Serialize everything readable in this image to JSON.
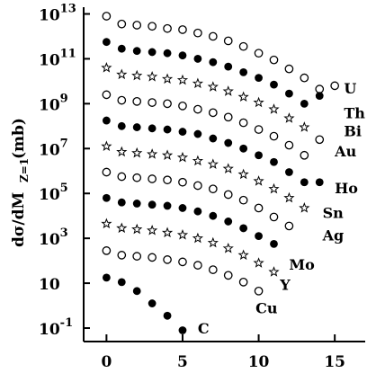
{
  "chart_data": {
    "type": "scatter",
    "title": "",
    "xlabel": "",
    "ylabel": "dσ/dM",
    "ylabel_sub": "Z=1",
    "ylabel_unit": "(mb)",
    "y_scale": "log",
    "xlim": [
      -1.5,
      17
    ],
    "ylim_exponent": [
      -1.6,
      13.3
    ],
    "x_ticks": [
      {
        "value": 0,
        "label": "0"
      },
      {
        "value": 5,
        "label": "5"
      },
      {
        "value": 10,
        "label": "10"
      },
      {
        "value": 15,
        "label": "15"
      }
    ],
    "y_ticks": [
      {
        "exp": 13,
        "base": "10",
        "sup": "13"
      },
      {
        "exp": 11,
        "base": "10",
        "sup": "11"
      },
      {
        "exp": 9,
        "base": "10",
        "sup": "9"
      },
      {
        "exp": 7,
        "base": "10",
        "sup": "7"
      },
      {
        "exp": 5,
        "base": "10",
        "sup": "5"
      },
      {
        "exp": 3,
        "base": "10",
        "sup": "3"
      },
      {
        "exp": 1,
        "base": "10",
        "sup": ""
      },
      {
        "exp": -1,
        "base": "10",
        "sup": "-1"
      }
    ],
    "series": [
      {
        "name": "U",
        "marker": "open-circle",
        "label_x": 15.6,
        "label_exp": 9.7,
        "points": [
          [
            0,
            12.9
          ],
          [
            1,
            12.55
          ],
          [
            2,
            12.5
          ],
          [
            3,
            12.45
          ],
          [
            4,
            12.35
          ],
          [
            5,
            12.3
          ],
          [
            6,
            12.15
          ],
          [
            7,
            12.0
          ],
          [
            8,
            11.8
          ],
          [
            9,
            11.55
          ],
          [
            10,
            11.25
          ],
          [
            11,
            10.95
          ],
          [
            12,
            10.55
          ],
          [
            13,
            10.15
          ],
          [
            14,
            9.65
          ],
          [
            15,
            9.8
          ]
        ]
      },
      {
        "name": "Th",
        "marker": "filled-circle",
        "label_x": 15.6,
        "label_exp": 8.6,
        "points": [
          [
            0,
            11.75
          ],
          [
            1,
            11.45
          ],
          [
            2,
            11.35
          ],
          [
            3,
            11.3
          ],
          [
            4,
            11.25
          ],
          [
            5,
            11.15
          ],
          [
            6,
            11.0
          ],
          [
            7,
            10.85
          ],
          [
            8,
            10.65
          ],
          [
            9,
            10.4
          ],
          [
            10,
            10.15
          ],
          [
            11,
            9.85
          ],
          [
            12,
            9.45
          ],
          [
            13,
            9.0
          ],
          [
            14,
            9.35
          ]
        ]
      },
      {
        "name": "Bi",
        "marker": "star",
        "label_x": 15.6,
        "label_exp": 7.8,
        "points": [
          [
            0,
            10.6
          ],
          [
            1,
            10.3
          ],
          [
            2,
            10.25
          ],
          [
            3,
            10.2
          ],
          [
            4,
            10.1
          ],
          [
            5,
            10.05
          ],
          [
            6,
            9.9
          ],
          [
            7,
            9.75
          ],
          [
            8,
            9.55
          ],
          [
            9,
            9.3
          ],
          [
            10,
            9.05
          ],
          [
            11,
            8.75
          ],
          [
            12,
            8.35
          ],
          [
            13,
            7.95
          ]
        ]
      },
      {
        "name": "Au",
        "marker": "open-circle",
        "label_x": 15.0,
        "label_exp": 6.9,
        "points": [
          [
            0,
            9.4
          ],
          [
            1,
            9.15
          ],
          [
            2,
            9.1
          ],
          [
            3,
            9.05
          ],
          [
            4,
            9.0
          ],
          [
            5,
            8.9
          ],
          [
            6,
            8.75
          ],
          [
            7,
            8.6
          ],
          [
            8,
            8.4
          ],
          [
            9,
            8.15
          ],
          [
            10,
            7.85
          ],
          [
            11,
            7.55
          ],
          [
            12,
            7.15
          ],
          [
            13,
            6.7
          ],
          [
            14,
            7.4
          ]
        ]
      },
      {
        "name": "Ho",
        "marker": "filled-circle",
        "label_x": 15.0,
        "label_exp": 5.25,
        "points": [
          [
            0,
            8.25
          ],
          [
            1,
            8.0
          ],
          [
            2,
            7.95
          ],
          [
            3,
            7.9
          ],
          [
            4,
            7.85
          ],
          [
            5,
            7.75
          ],
          [
            6,
            7.65
          ],
          [
            7,
            7.45
          ],
          [
            8,
            7.25
          ],
          [
            9,
            7.0
          ],
          [
            10,
            6.7
          ],
          [
            11,
            6.4
          ],
          [
            12,
            5.95
          ],
          [
            13,
            5.5
          ],
          [
            14,
            5.5
          ]
        ]
      },
      {
        "name": "Sn",
        "marker": "star",
        "label_x": 14.2,
        "label_exp": 4.15,
        "points": [
          [
            0,
            7.1
          ],
          [
            1,
            6.85
          ],
          [
            2,
            6.8
          ],
          [
            3,
            6.75
          ],
          [
            4,
            6.7
          ],
          [
            5,
            6.6
          ],
          [
            6,
            6.45
          ],
          [
            7,
            6.3
          ],
          [
            8,
            6.1
          ],
          [
            9,
            5.85
          ],
          [
            10,
            5.55
          ],
          [
            11,
            5.2
          ],
          [
            12,
            4.8
          ],
          [
            13,
            4.35
          ]
        ]
      },
      {
        "name": "Ag",
        "marker": "open-circle",
        "label_x": 14.2,
        "label_exp": 3.15,
        "points": [
          [
            0,
            5.95
          ],
          [
            1,
            5.75
          ],
          [
            2,
            5.7
          ],
          [
            3,
            5.65
          ],
          [
            4,
            5.6
          ],
          [
            5,
            5.5
          ],
          [
            6,
            5.35
          ],
          [
            7,
            5.2
          ],
          [
            8,
            4.95
          ],
          [
            9,
            4.7
          ],
          [
            10,
            4.35
          ],
          [
            11,
            3.95
          ],
          [
            12,
            3.55
          ]
        ]
      },
      {
        "name": "Mo",
        "marker": "filled-circle",
        "label_x": 12.0,
        "label_exp": 1.85,
        "points": [
          [
            0,
            4.8
          ],
          [
            1,
            4.6
          ],
          [
            2,
            4.55
          ],
          [
            3,
            4.5
          ],
          [
            4,
            4.45
          ],
          [
            5,
            4.35
          ],
          [
            6,
            4.2
          ],
          [
            7,
            4.0
          ],
          [
            8,
            3.75
          ],
          [
            9,
            3.45
          ],
          [
            10,
            3.1
          ],
          [
            11,
            2.75
          ]
        ]
      },
      {
        "name": "Y",
        "marker": "star",
        "label_x": 11.4,
        "label_exp": 0.95,
        "points": [
          [
            0,
            3.65
          ],
          [
            1,
            3.45
          ],
          [
            2,
            3.4
          ],
          [
            3,
            3.35
          ],
          [
            4,
            3.25
          ],
          [
            5,
            3.15
          ],
          [
            6,
            3.0
          ],
          [
            7,
            2.8
          ],
          [
            8,
            2.55
          ],
          [
            9,
            2.25
          ],
          [
            10,
            1.9
          ],
          [
            11,
            1.5
          ]
        ]
      },
      {
        "name": "Cu",
        "marker": "open-circle",
        "label_x": 9.8,
        "label_exp": -0.1,
        "points": [
          [
            0,
            2.45
          ],
          [
            1,
            2.25
          ],
          [
            2,
            2.2
          ],
          [
            3,
            2.15
          ],
          [
            4,
            2.05
          ],
          [
            5,
            1.95
          ],
          [
            6,
            1.8
          ],
          [
            7,
            1.6
          ],
          [
            8,
            1.35
          ],
          [
            9,
            1.05
          ],
          [
            10,
            0.65
          ]
        ]
      },
      {
        "name": "C",
        "marker": "filled-circle",
        "label_x": 6.0,
        "label_exp": -1.0,
        "points": [
          [
            0,
            1.25
          ],
          [
            1,
            1.05
          ],
          [
            2,
            0.65
          ],
          [
            3,
            0.1
          ],
          [
            4,
            -0.45
          ],
          [
            5,
            -1.1
          ]
        ]
      }
    ]
  }
}
